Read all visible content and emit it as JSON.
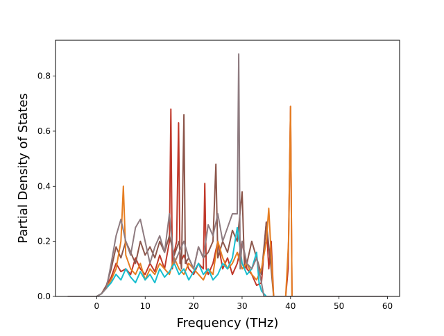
{
  "chart_data": {
    "type": "line",
    "title": "",
    "xlabel": "Frequency (THz)",
    "ylabel": "Partial Density of States",
    "xlim": [
      -8.5,
      62.5
    ],
    "ylim": [
      0.0,
      0.93
    ],
    "xticks": [
      0,
      10,
      20,
      30,
      40,
      50,
      60
    ],
    "xtick_labels": [
      "0",
      "10",
      "20",
      "30",
      "40",
      "50",
      "60"
    ],
    "yticks": [
      0.0,
      0.2,
      0.4,
      0.6,
      0.8
    ],
    "ytick_labels": [
      "0.0",
      "0.2",
      "0.4",
      "0.6",
      "0.8"
    ],
    "grid": false,
    "legend": "none",
    "series": [
      {
        "color": "#c0392b",
        "points": [
          [
            -6,
            0
          ],
          [
            0,
            0
          ],
          [
            1,
            0.01
          ],
          [
            2,
            0.04
          ],
          [
            3,
            0.07
          ],
          [
            4,
            0.12
          ],
          [
            5,
            0.09
          ],
          [
            6,
            0.1
          ],
          [
            7,
            0.08
          ],
          [
            8,
            0.14
          ],
          [
            9,
            0.1
          ],
          [
            10,
            0.08
          ],
          [
            11,
            0.12
          ],
          [
            12,
            0.09
          ],
          [
            13,
            0.15
          ],
          [
            14,
            0.1
          ],
          [
            15,
            0.2
          ],
          [
            15.3,
            0.68
          ],
          [
            15.6,
            0.1
          ],
          [
            16,
            0.16
          ],
          [
            16.5,
            0.2
          ],
          [
            16.9,
            0.63
          ],
          [
            17.2,
            0.12
          ],
          [
            18,
            0.15
          ],
          [
            19,
            0.1
          ],
          [
            20,
            0.08
          ],
          [
            21,
            0.12
          ],
          [
            22,
            0.1
          ],
          [
            22.3,
            0.41
          ],
          [
            22.6,
            0.1
          ],
          [
            23,
            0.08
          ],
          [
            24,
            0.12
          ],
          [
            25,
            0.2
          ],
          [
            26,
            0.1
          ],
          [
            27,
            0.14
          ],
          [
            28,
            0.08
          ],
          [
            29,
            0.12
          ],
          [
            30,
            0.2
          ],
          [
            31,
            0.1
          ],
          [
            32,
            0.08
          ],
          [
            33,
            0.04
          ],
          [
            34,
            0.05
          ],
          [
            35,
            0.27
          ],
          [
            35.5,
            0.1
          ],
          [
            36,
            0.2
          ],
          [
            36.5,
            0.0
          ],
          [
            39,
            0
          ],
          [
            39.5,
            0.1
          ],
          [
            40,
            0.69
          ],
          [
            40.3,
            0.0
          ],
          [
            60,
            0
          ]
        ]
      },
      {
        "color": "#8c564b",
        "points": [
          [
            -6,
            0
          ],
          [
            0,
            0
          ],
          [
            1,
            0.01
          ],
          [
            2,
            0.04
          ],
          [
            3,
            0.1
          ],
          [
            4,
            0.18
          ],
          [
            5,
            0.14
          ],
          [
            6,
            0.2
          ],
          [
            7,
            0.16
          ],
          [
            8,
            0.12
          ],
          [
            9,
            0.2
          ],
          [
            10,
            0.15
          ],
          [
            11,
            0.18
          ],
          [
            12,
            0.14
          ],
          [
            13,
            0.2
          ],
          [
            14,
            0.16
          ],
          [
            15,
            0.22
          ],
          [
            16,
            0.15
          ],
          [
            17,
            0.2
          ],
          [
            17.5,
            0.1
          ],
          [
            18,
            0.66
          ],
          [
            18.3,
            0.12
          ],
          [
            19,
            0.14
          ],
          [
            20,
            0.1
          ],
          [
            21,
            0.18
          ],
          [
            22,
            0.14
          ],
          [
            23,
            0.16
          ],
          [
            24,
            0.2
          ],
          [
            24.6,
            0.48
          ],
          [
            25,
            0.14
          ],
          [
            26,
            0.2
          ],
          [
            27,
            0.16
          ],
          [
            28,
            0.24
          ],
          [
            29,
            0.2
          ],
          [
            30,
            0.38
          ],
          [
            30.5,
            0.1
          ],
          [
            31,
            0.12
          ],
          [
            32,
            0.2
          ],
          [
            33,
            0.14
          ],
          [
            34,
            0.08
          ],
          [
            35,
            0.27
          ],
          [
            36,
            0.1
          ],
          [
            36.5,
            0.0
          ],
          [
            60,
            0
          ]
        ]
      },
      {
        "color": "#e67e22",
        "points": [
          [
            -6,
            0
          ],
          [
            0,
            0
          ],
          [
            1,
            0.01
          ],
          [
            2,
            0.03
          ],
          [
            3,
            0.06
          ],
          [
            4,
            0.1
          ],
          [
            5,
            0.2
          ],
          [
            5.5,
            0.4
          ],
          [
            6,
            0.15
          ],
          [
            7,
            0.1
          ],
          [
            8,
            0.08
          ],
          [
            9,
            0.12
          ],
          [
            10,
            0.06
          ],
          [
            11,
            0.1
          ],
          [
            12,
            0.08
          ],
          [
            13,
            0.12
          ],
          [
            14,
            0.1
          ],
          [
            15,
            0.08
          ],
          [
            16,
            0.14
          ],
          [
            17,
            0.1
          ],
          [
            18,
            0.08
          ],
          [
            19,
            0.12
          ],
          [
            20,
            0.1
          ],
          [
            21,
            0.08
          ],
          [
            22,
            0.06
          ],
          [
            23,
            0.1
          ],
          [
            24,
            0.08
          ],
          [
            25,
            0.2
          ],
          [
            26,
            0.14
          ],
          [
            27,
            0.1
          ],
          [
            28,
            0.12
          ],
          [
            29,
            0.16
          ],
          [
            30,
            0.1
          ],
          [
            31,
            0.12
          ],
          [
            32,
            0.08
          ],
          [
            33,
            0.06
          ],
          [
            34,
            0.1
          ],
          [
            35,
            0.2
          ],
          [
            35.5,
            0.32
          ],
          [
            36,
            0.15
          ],
          [
            36.5,
            0.0
          ],
          [
            39,
            0
          ],
          [
            39.6,
            0.2
          ],
          [
            40,
            0.69
          ],
          [
            40.3,
            0.0
          ],
          [
            60,
            0
          ]
        ]
      },
      {
        "color": "#17becf",
        "points": [
          [
            -6,
            0
          ],
          [
            0,
            0
          ],
          [
            1,
            0.01
          ],
          [
            2,
            0.03
          ],
          [
            3,
            0.05
          ],
          [
            4,
            0.08
          ],
          [
            5,
            0.06
          ],
          [
            6,
            0.1
          ],
          [
            7,
            0.07
          ],
          [
            8,
            0.05
          ],
          [
            9,
            0.09
          ],
          [
            10,
            0.06
          ],
          [
            11,
            0.08
          ],
          [
            12,
            0.05
          ],
          [
            13,
            0.1
          ],
          [
            14,
            0.07
          ],
          [
            15,
            0.09
          ],
          [
            16,
            0.12
          ],
          [
            17,
            0.08
          ],
          [
            18,
            0.1
          ],
          [
            19,
            0.06
          ],
          [
            20,
            0.09
          ],
          [
            21,
            0.12
          ],
          [
            22,
            0.08
          ],
          [
            23,
            0.1
          ],
          [
            24,
            0.06
          ],
          [
            25,
            0.08
          ],
          [
            26,
            0.12
          ],
          [
            27,
            0.1
          ],
          [
            28,
            0.14
          ],
          [
            29,
            0.25
          ],
          [
            30,
            0.12
          ],
          [
            31,
            0.08
          ],
          [
            32,
            0.1
          ],
          [
            33,
            0.16
          ],
          [
            33.5,
            0.05
          ],
          [
            34,
            0.02
          ],
          [
            35,
            0.0
          ],
          [
            60,
            0
          ]
        ]
      },
      {
        "color": "#8e7b80",
        "points": [
          [
            -6,
            0
          ],
          [
            0,
            0
          ],
          [
            1,
            0.01
          ],
          [
            2,
            0.03
          ],
          [
            3,
            0.12
          ],
          [
            4,
            0.22
          ],
          [
            5,
            0.28
          ],
          [
            6,
            0.2
          ],
          [
            7,
            0.15
          ],
          [
            8,
            0.25
          ],
          [
            9,
            0.28
          ],
          [
            10,
            0.2
          ],
          [
            11,
            0.12
          ],
          [
            12,
            0.18
          ],
          [
            13,
            0.22
          ],
          [
            14,
            0.16
          ],
          [
            15,
            0.3
          ],
          [
            16,
            0.12
          ],
          [
            17,
            0.16
          ],
          [
            18,
            0.2
          ],
          [
            19,
            0.14
          ],
          [
            20,
            0.1
          ],
          [
            21,
            0.18
          ],
          [
            22,
            0.14
          ],
          [
            23,
            0.26
          ],
          [
            24,
            0.22
          ],
          [
            25,
            0.3
          ],
          [
            26,
            0.2
          ],
          [
            27,
            0.25
          ],
          [
            28,
            0.3
          ],
          [
            29,
            0.3
          ],
          [
            29.3,
            0.88
          ],
          [
            29.6,
            0.1
          ],
          [
            30,
            0.2
          ],
          [
            31,
            0.12
          ],
          [
            32,
            0.1
          ],
          [
            33,
            0.14
          ],
          [
            34,
            0.05
          ],
          [
            34.5,
            0.0
          ],
          [
            60,
            0
          ]
        ]
      }
    ]
  }
}
